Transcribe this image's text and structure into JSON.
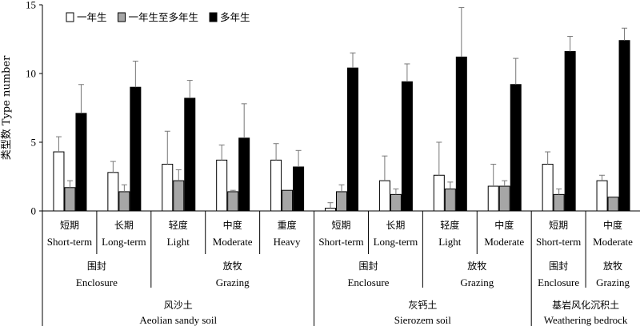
{
  "chart_data": {
    "type": "bar",
    "ylabel": "类型数 Type number",
    "ylim": [
      0,
      15
    ],
    "yticks": [
      "0",
      "5",
      "10",
      "15"
    ],
    "grid": false,
    "legend_placement": "top-left",
    "categories": [
      {
        "zh": "短期",
        "en": "Short-term"
      },
      {
        "zh": "长期",
        "en": "Long-term"
      },
      {
        "zh": "轻度",
        "en": "Light"
      },
      {
        "zh": "中度",
        "en": "Moderate"
      },
      {
        "zh": "重度",
        "en": "Heavy"
      },
      {
        "zh": "短期",
        "en": "Short-term"
      },
      {
        "zh": "长期",
        "en": "Long-term"
      },
      {
        "zh": "轻度",
        "en": "Light"
      },
      {
        "zh": "中度",
        "en": "Moderate"
      },
      {
        "zh": "短期",
        "en": "Short-term"
      },
      {
        "zh": "中度",
        "en": "Moderate"
      }
    ],
    "series": [
      {
        "name": "一年生",
        "color": "#ffffff",
        "values": [
          4.3,
          2.8,
          3.4,
          3.7,
          3.7,
          0.2,
          2.2,
          2.6,
          1.8,
          3.4,
          2.2
        ],
        "errors": [
          1.1,
          0.8,
          2.4,
          1.1,
          1.2,
          0.4,
          1.8,
          2.4,
          1.6,
          0.9,
          0.4
        ]
      },
      {
        "name": "一年生至多年生",
        "color": "#a6a6a6",
        "values": [
          1.7,
          1.4,
          2.2,
          1.4,
          1.5,
          1.4,
          1.2,
          1.6,
          1.8,
          1.2,
          1.0
        ],
        "errors": [
          0.5,
          0.5,
          0.8,
          0.1,
          0.0,
          0.5,
          0.4,
          0.5,
          0.4,
          0.4,
          0.0
        ]
      },
      {
        "name": "多年生",
        "color": "#000000",
        "values": [
          7.1,
          9.0,
          8.2,
          5.3,
          3.2,
          10.4,
          9.4,
          11.2,
          9.2,
          11.6,
          12.4
        ],
        "errors": [
          2.1,
          1.9,
          1.3,
          2.5,
          1.2,
          1.1,
          1.3,
          3.6,
          1.9,
          1.1,
          0.9
        ]
      }
    ],
    "groups": [
      {
        "zh": "围封",
        "en": "Enclosure",
        "start": 0,
        "end": 1
      },
      {
        "zh": "放牧",
        "en": "Grazing",
        "start": 2,
        "end": 4
      },
      {
        "zh": "围封",
        "en": "Enclosure",
        "start": 5,
        "end": 6
      },
      {
        "zh": "放牧",
        "en": "Grazing",
        "start": 7,
        "end": 8
      },
      {
        "zh": "围封",
        "en": "Enclosure",
        "start": 9,
        "end": 9
      },
      {
        "zh": "放牧",
        "en": "Grazing",
        "start": 10,
        "end": 10
      }
    ],
    "soils": [
      {
        "zh": "风沙土",
        "en": "Aeolian sandy soil",
        "start": 0,
        "end": 4
      },
      {
        "zh": "灰钙土",
        "en": "Sierozem soil",
        "start": 5,
        "end": 8
      },
      {
        "zh": "基岩风化沉积土",
        "en": "Weathering bedrock",
        "start": 9,
        "end": 10
      }
    ]
  }
}
